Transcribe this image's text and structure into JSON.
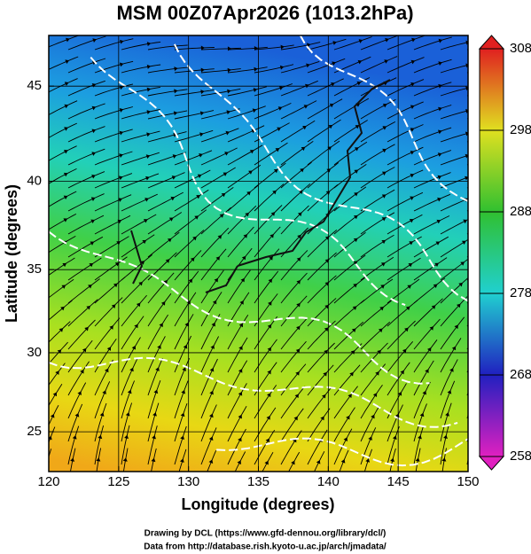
{
  "chart_data": {
    "type": "map",
    "title": "MSM 00Z07Apr2026 (1013.2hPa)",
    "x_label": "Longitude (degrees)",
    "y_label": "Latitude  (degrees)",
    "projection": "mercator",
    "xlim": [
      120,
      150
    ],
    "ylim": [
      22.4,
      47.5
    ],
    "xticks": [
      120,
      125,
      130,
      135,
      140,
      145,
      150
    ],
    "yticks": [
      25,
      30,
      35,
      40,
      45
    ],
    "grid": true,
    "colorbar": {
      "lim": [
        258,
        308
      ],
      "ticks": [
        258,
        268,
        278,
        288,
        298,
        308
      ],
      "colors": [
        "#e020c0",
        "#2020c0",
        "#20d0d0",
        "#30c030",
        "#e0e020",
        "#e02020"
      ]
    },
    "footer": [
      "Drawing by DCL (https://www.gfd-dennou.org/library/dcl/)",
      "Data from http://database.rish.kyoto-u.ac.jp/arch/jmadata/"
    ]
  }
}
